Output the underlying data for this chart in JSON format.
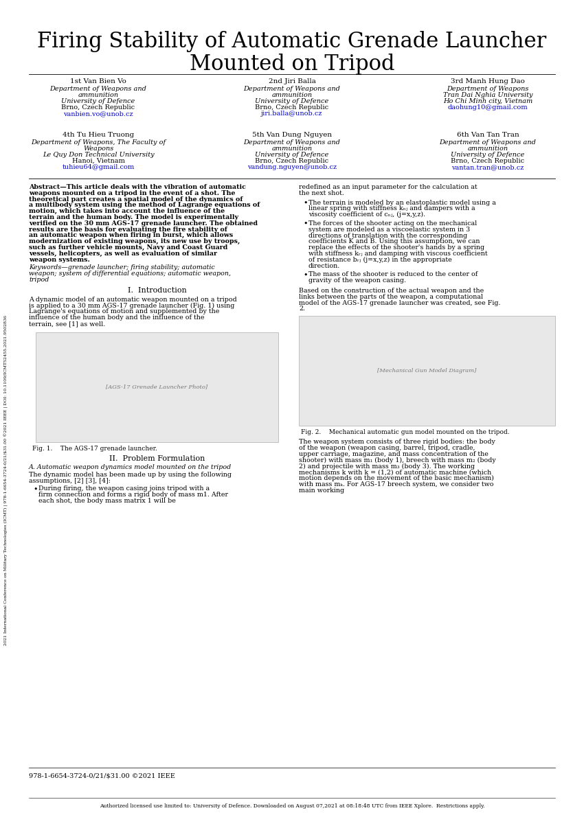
{
  "title_line1": "Firing Stability of Automatic Grenade Launcher",
  "title_line2": "Mounted on Tripod",
  "bg_color": "#ffffff",
  "text_color": "#000000",
  "link_color": "#0000cc",
  "sidebar_text": "2021 International Conference on Military Technologies (ICMT) | 978-1-6654-3724-0/21/$31.00 ©2021 IEEE | DOI: 10.1109/ICMT52455.2021.9502836",
  "footer_isbn": "978-1-6654-3724-0/21/$31.00 ©2021 IEEE",
  "footer_auth": "Authorized licensed use limited to: University of Defence. Downloaded on August 07,2021 at 08:18:48 UTC from IEEE Xplore.  Restrictions apply.",
  "authors": [
    {
      "num": "1",
      "num_sup": "st",
      "name": "Van Bien Vo",
      "dept1": "Department of Weapons and",
      "dept2": "ammunition",
      "univ": "University of Defence",
      "city": "Brno, Czech Republic",
      "email": "vanbien.vo@unob.cz"
    },
    {
      "num": "2",
      "num_sup": "nd",
      "name": "Jiri Balla",
      "dept1": "Department of Weapons and",
      "dept2": "ammunition",
      "univ": "University of Defence",
      "city": "Brno, Czech Republic",
      "email": "jiri.balla@unob.cz"
    },
    {
      "num": "3",
      "num_sup": "rd",
      "name": "Manh Hung Dao",
      "dept1": "Department of Weapons",
      "dept2": "Tran Dai Nghia University",
      "univ": "Ho Chi Minh city, Vietnam",
      "city": "",
      "email": "daohung10@gmail.com"
    },
    {
      "num": "4",
      "num_sup": "th",
      "name": "Tu Hieu Truong",
      "dept1": "Department of Weapons, The Faculty of",
      "dept2": "Weapons",
      "univ": "Le Quy Don Technical University",
      "city": "Hanoi, Vietnam",
      "email": "tuhieu64@gmail.com"
    },
    {
      "num": "5",
      "num_sup": "th",
      "name": "Van Dung Nguyen",
      "dept1": "Department of Weapons and",
      "dept2": "ammunition",
      "univ": "University of Defence",
      "city": "Brno, Czech Republic",
      "email": "vandung.nguyen@unob.cz"
    },
    {
      "num": "6",
      "num_sup": "th",
      "name": "Van Tan Tran",
      "dept1": "Department of Weapons and",
      "dept2": "ammunition",
      "univ": "University of Defence",
      "city": "Brno, Czech Republic",
      "email": "vantan.tran@unob.cz"
    }
  ],
  "fig1_caption": "Fig. 1.    The AGS-17 grenade launcher.",
  "fig2_caption": "Fig. 2.    Mechanical automatic gun model mounted on the tripod.",
  "section_intro_title": "I.  Introduction",
  "section_prob_title": "II.  Problem Formulation"
}
